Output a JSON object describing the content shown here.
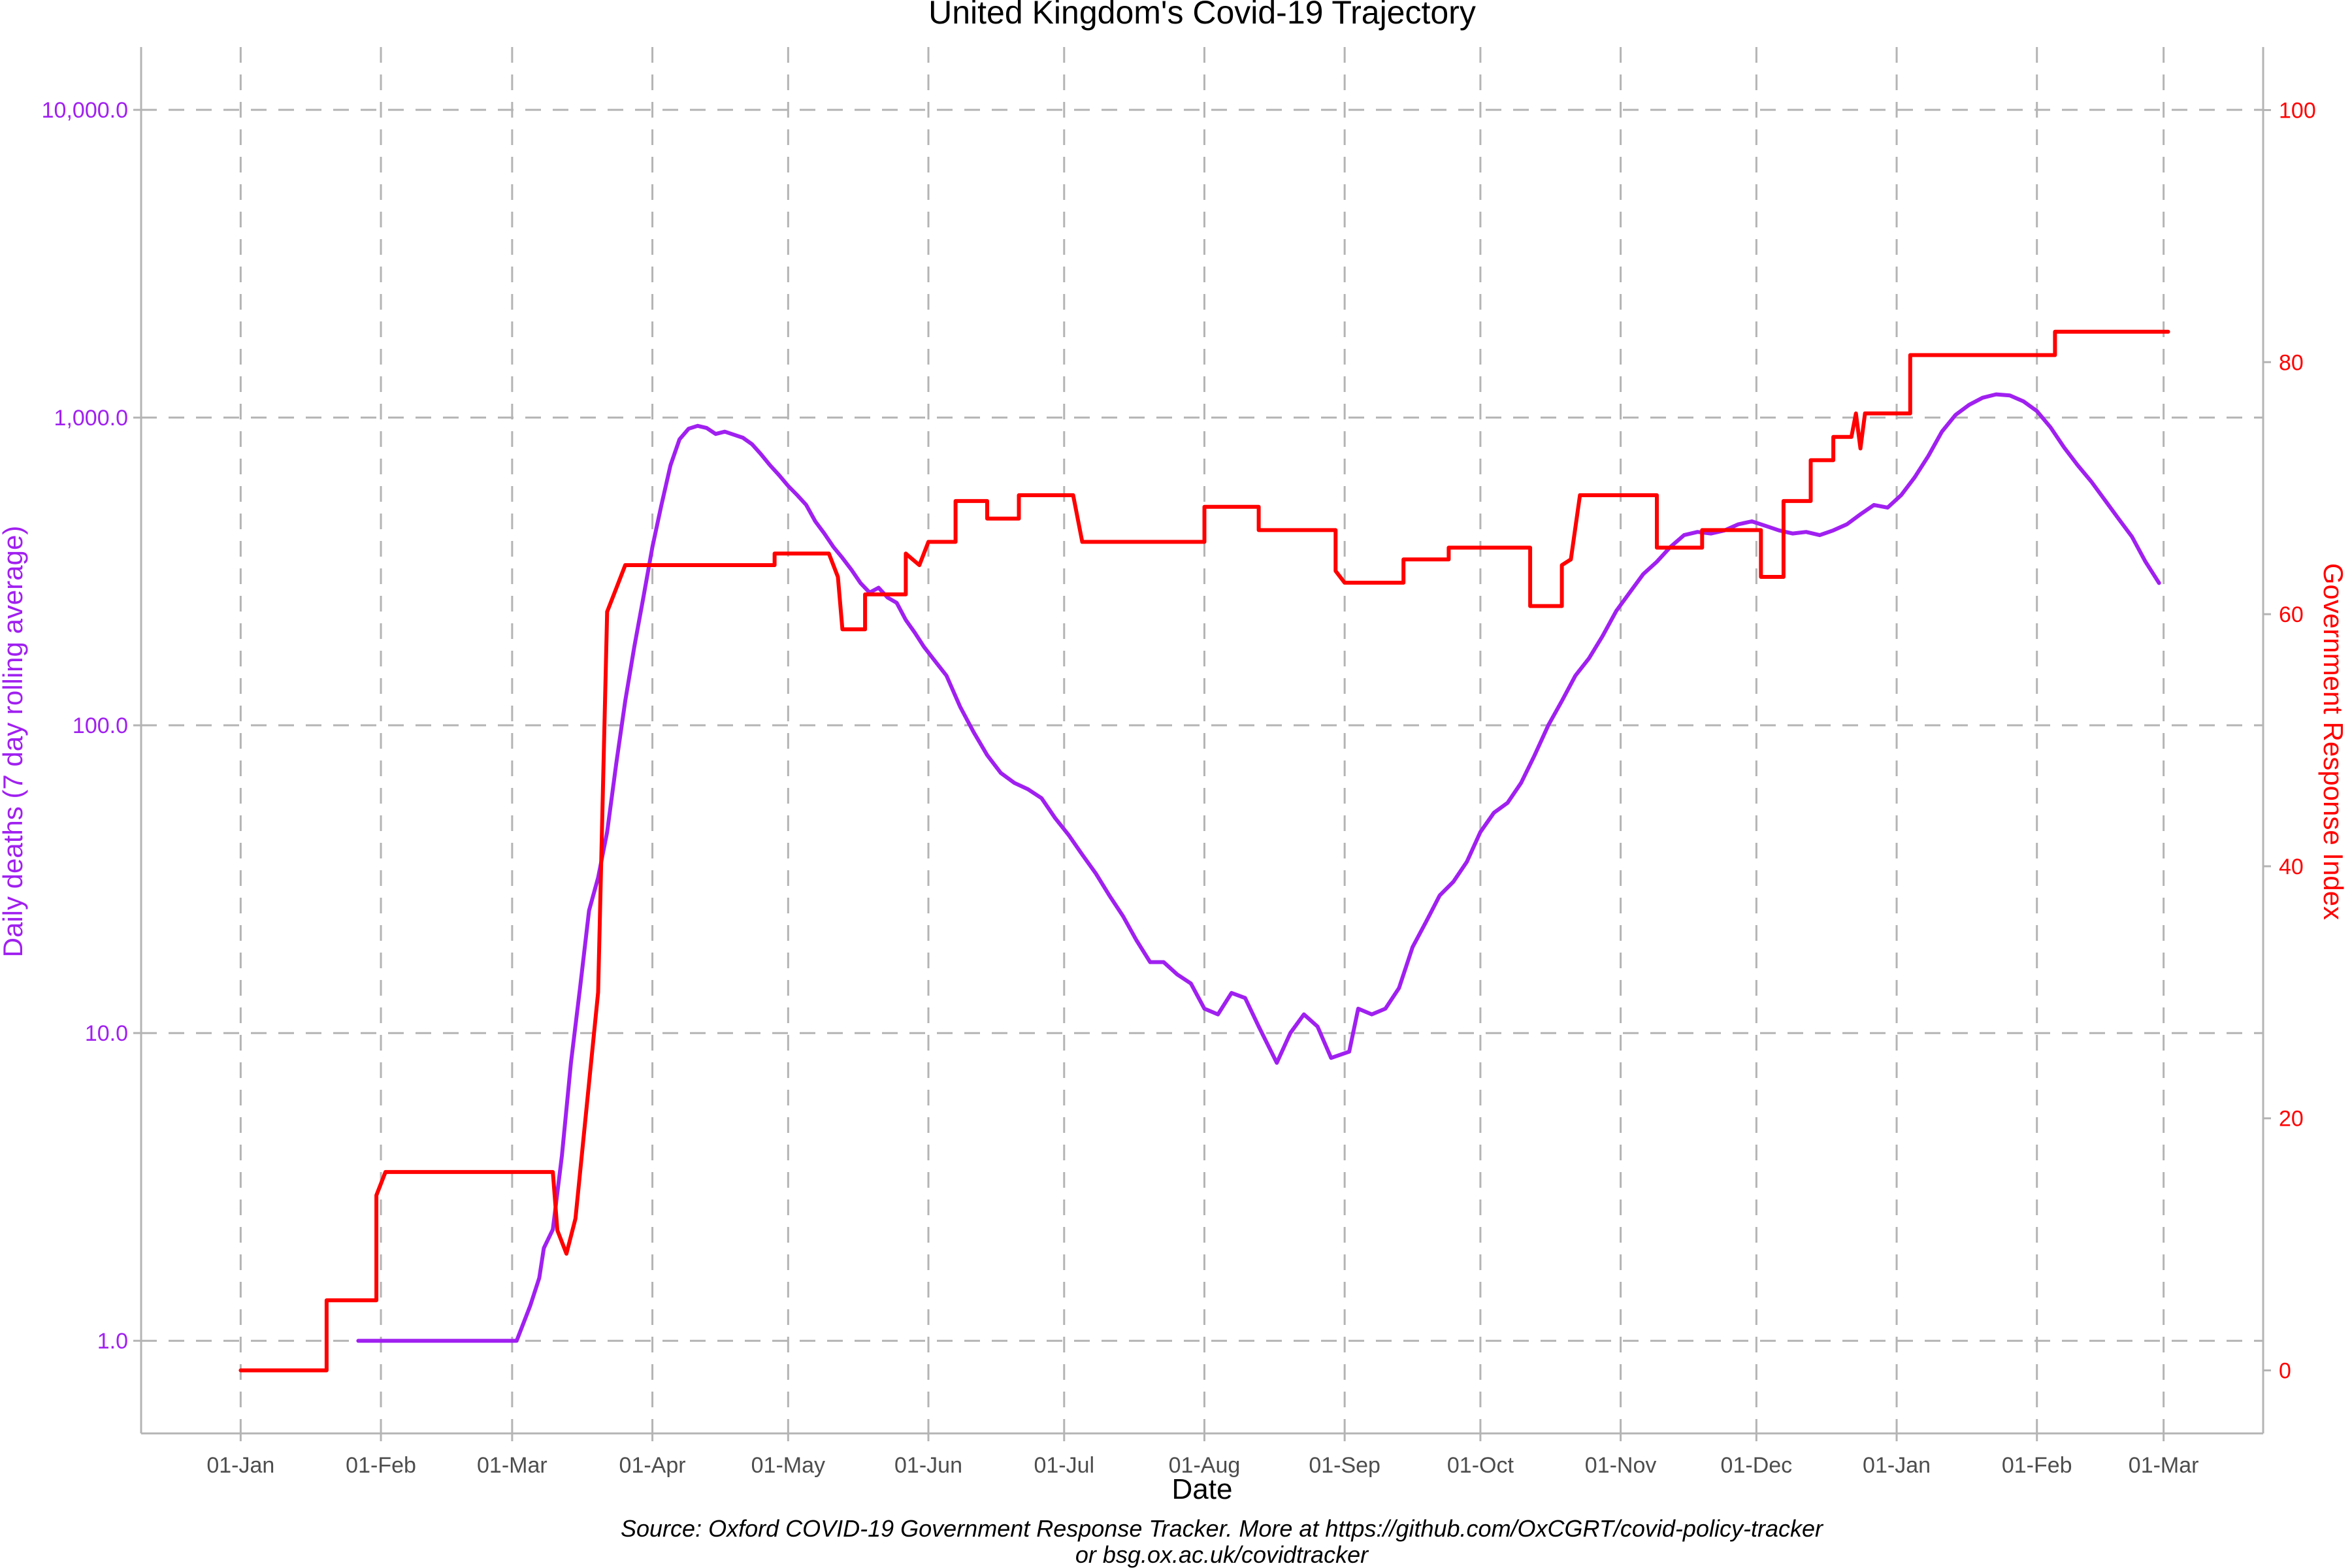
{
  "chart_data": {
    "type": "line",
    "title": "United Kingdom's Covid-19 Trajectory",
    "xlabel": "Date",
    "ylabel_left": "Daily deaths (7 day rolling average)",
    "ylabel_right": "Government Response Index",
    "caption_lines": [
      "Source: Oxford COVID-19 Government Response Tracker. More at https://github.com/OxCGRT/covid-policy-tracker",
      "or bsg.ox.ac.uk/covidtracker"
    ],
    "x_axis": {
      "ticks": [
        "2020-01-01",
        "2020-02-01",
        "2020-03-01",
        "2020-04-01",
        "2020-05-01",
        "2020-06-01",
        "2020-07-01",
        "2020-08-01",
        "2020-09-01",
        "2020-10-01",
        "2020-11-01",
        "2020-12-01",
        "2021-01-01",
        "2021-02-01",
        "2021-03-01"
      ],
      "tick_labels": [
        "01-Jan",
        "01-Feb",
        "01-Mar",
        "01-Apr",
        "01-May",
        "01-Jun",
        "01-Jul",
        "01-Aug",
        "01-Sep",
        "01-Oct",
        "01-Nov",
        "01-Dec",
        "01-Jan",
        "01-Feb",
        "01-Mar"
      ],
      "range": [
        "2019-12-10",
        "2021-03-23"
      ]
    },
    "y_left": {
      "scale": "log10",
      "ticks": [
        1,
        10,
        100,
        1000,
        10000
      ],
      "tick_labels": [
        "1.0",
        "10.0",
        "100.0",
        "1,000.0",
        "10,000.0"
      ],
      "range": [
        0.5,
        16000
      ],
      "color": "#a020f0"
    },
    "y_right": {
      "scale": "linear",
      "ticks": [
        0,
        20,
        40,
        60,
        80,
        100
      ],
      "tick_labels": [
        "0",
        "20",
        "40",
        "60",
        "80",
        "100"
      ],
      "range": [
        -5,
        105
      ],
      "color": "#ff0000"
    },
    "grid": true,
    "series": [
      {
        "axis": "left",
        "color": "#a020f0",
        "points": [
          [
            "2020-01-27",
            1
          ],
          [
            "2020-03-02",
            1
          ],
          [
            "2020-03-05",
            1.3
          ],
          [
            "2020-03-07",
            1.6
          ],
          [
            "2020-03-08",
            2
          ],
          [
            "2020-03-10",
            2.3
          ],
          [
            "2020-03-12",
            4
          ],
          [
            "2020-03-14",
            8
          ],
          [
            "2020-03-16",
            14
          ],
          [
            "2020-03-18",
            25
          ],
          [
            "2020-03-20",
            32
          ],
          [
            "2020-03-22",
            45
          ],
          [
            "2020-03-24",
            75
          ],
          [
            "2020-03-26",
            120
          ],
          [
            "2020-03-28",
            180
          ],
          [
            "2020-03-30",
            260
          ],
          [
            "2020-04-01",
            380
          ],
          [
            "2020-04-03",
            520
          ],
          [
            "2020-04-05",
            700
          ],
          [
            "2020-04-07",
            850
          ],
          [
            "2020-04-09",
            920
          ],
          [
            "2020-04-11",
            940
          ],
          [
            "2020-04-13",
            925
          ],
          [
            "2020-04-15",
            885
          ],
          [
            "2020-04-17",
            900
          ],
          [
            "2020-04-19",
            880
          ],
          [
            "2020-04-21",
            860
          ],
          [
            "2020-04-23",
            820
          ],
          [
            "2020-04-25",
            760
          ],
          [
            "2020-04-27",
            700
          ],
          [
            "2020-04-29",
            650
          ],
          [
            "2020-05-01",
            600
          ],
          [
            "2020-05-03",
            560
          ],
          [
            "2020-05-05",
            520
          ],
          [
            "2020-05-07",
            460
          ],
          [
            "2020-05-09",
            420
          ],
          [
            "2020-05-11",
            380
          ],
          [
            "2020-05-13",
            350
          ],
          [
            "2020-05-15",
            320
          ],
          [
            "2020-05-17",
            290
          ],
          [
            "2020-05-19",
            270
          ],
          [
            "2020-05-21",
            280
          ],
          [
            "2020-05-23",
            260
          ],
          [
            "2020-05-25",
            250
          ],
          [
            "2020-05-27",
            220
          ],
          [
            "2020-05-29",
            200
          ],
          [
            "2020-05-31",
            180
          ],
          [
            "2020-06-02",
            165
          ],
          [
            "2020-06-05",
            145
          ],
          [
            "2020-06-08",
            115
          ],
          [
            "2020-06-11",
            95
          ],
          [
            "2020-06-14",
            80
          ],
          [
            "2020-06-17",
            70
          ],
          [
            "2020-06-20",
            65
          ],
          [
            "2020-06-23",
            62
          ],
          [
            "2020-06-26",
            58
          ],
          [
            "2020-06-29",
            50
          ],
          [
            "2020-07-02",
            44
          ],
          [
            "2020-07-05",
            38
          ],
          [
            "2020-07-08",
            33
          ],
          [
            "2020-07-11",
            28
          ],
          [
            "2020-07-14",
            24
          ],
          [
            "2020-07-17",
            20
          ],
          [
            "2020-07-20",
            17
          ],
          [
            "2020-07-23",
            17
          ],
          [
            "2020-07-26",
            15.5
          ],
          [
            "2020-07-29",
            14.5
          ],
          [
            "2020-08-01",
            12
          ],
          [
            "2020-08-04",
            11.5
          ],
          [
            "2020-08-07",
            13.5
          ],
          [
            "2020-08-10",
            13
          ],
          [
            "2020-08-13",
            10.5
          ],
          [
            "2020-08-17",
            8
          ],
          [
            "2020-08-20",
            10
          ],
          [
            "2020-08-23",
            11.5
          ],
          [
            "2020-08-26",
            10.5
          ],
          [
            "2020-08-29",
            8.3
          ],
          [
            "2020-09-02",
            8.7
          ],
          [
            "2020-09-04",
            12
          ],
          [
            "2020-09-07",
            11.5
          ],
          [
            "2020-09-10",
            12
          ],
          [
            "2020-09-13",
            14
          ],
          [
            "2020-09-16",
            19
          ],
          [
            "2020-09-19",
            23
          ],
          [
            "2020-09-22",
            28
          ],
          [
            "2020-09-25",
            31
          ],
          [
            "2020-09-28",
            36
          ],
          [
            "2020-10-01",
            45
          ],
          [
            "2020-10-04",
            52
          ],
          [
            "2020-10-07",
            56
          ],
          [
            "2020-10-10",
            65
          ],
          [
            "2020-10-13",
            80
          ],
          [
            "2020-10-16",
            100
          ],
          [
            "2020-10-19",
            120
          ],
          [
            "2020-10-22",
            145
          ],
          [
            "2020-10-25",
            165
          ],
          [
            "2020-10-28",
            195
          ],
          [
            "2020-10-31",
            235
          ],
          [
            "2020-11-03",
            270
          ],
          [
            "2020-11-06",
            310
          ],
          [
            "2020-11-09",
            340
          ],
          [
            "2020-11-12",
            380
          ],
          [
            "2020-11-15",
            415
          ],
          [
            "2020-11-18",
            425
          ],
          [
            "2020-11-21",
            420
          ],
          [
            "2020-11-24",
            430
          ],
          [
            "2020-11-27",
            450
          ],
          [
            "2020-11-30",
            460
          ],
          [
            "2020-12-03",
            445
          ],
          [
            "2020-12-06",
            430
          ],
          [
            "2020-12-09",
            420
          ],
          [
            "2020-12-12",
            425
          ],
          [
            "2020-12-15",
            415
          ],
          [
            "2020-12-18",
            430
          ],
          [
            "2020-12-21",
            450
          ],
          [
            "2020-12-24",
            485
          ],
          [
            "2020-12-27",
            520
          ],
          [
            "2020-12-30",
            510
          ],
          [
            "2021-01-02",
            560
          ],
          [
            "2021-01-05",
            640
          ],
          [
            "2021-01-08",
            750
          ],
          [
            "2021-01-11",
            900
          ],
          [
            "2021-01-14",
            1020
          ],
          [
            "2021-01-17",
            1100
          ],
          [
            "2021-01-20",
            1160
          ],
          [
            "2021-01-23",
            1190
          ],
          [
            "2021-01-26",
            1180
          ],
          [
            "2021-01-29",
            1130
          ],
          [
            "2021-02-01",
            1050
          ],
          [
            "2021-02-04",
            930
          ],
          [
            "2021-02-07",
            800
          ],
          [
            "2021-02-10",
            700
          ],
          [
            "2021-02-13",
            620
          ],
          [
            "2021-02-16",
            540
          ],
          [
            "2021-02-19",
            470
          ],
          [
            "2021-02-22",
            410
          ],
          [
            "2021-02-25",
            340
          ],
          [
            "2021-02-28",
            290
          ]
        ]
      },
      {
        "axis": "right",
        "color": "#ff0000",
        "step": true,
        "points": [
          [
            "2020-01-01",
            0
          ],
          [
            "2020-01-20",
            0
          ],
          [
            "2020-01-20",
            5.56
          ],
          [
            "2020-01-31",
            5.56
          ],
          [
            "2020-01-31",
            13.89
          ],
          [
            "2020-02-02",
            15.74
          ],
          [
            "2020-03-10",
            15.74
          ],
          [
            "2020-03-11",
            11.11
          ],
          [
            "2020-03-13",
            9.26
          ],
          [
            "2020-03-15",
            12.04
          ],
          [
            "2020-03-20",
            30.0
          ],
          [
            "2020-03-22",
            60.19
          ],
          [
            "2020-03-24",
            62.04
          ],
          [
            "2020-03-26",
            63.89
          ],
          [
            "2020-04-28",
            63.89
          ],
          [
            "2020-04-28",
            64.81
          ],
          [
            "2020-05-10",
            64.81
          ],
          [
            "2020-05-12",
            62.96
          ],
          [
            "2020-05-13",
            58.8
          ],
          [
            "2020-05-18",
            58.8
          ],
          [
            "2020-05-18",
            61.57
          ],
          [
            "2020-05-27",
            61.57
          ],
          [
            "2020-05-27",
            64.81
          ],
          [
            "2020-05-30",
            63.89
          ],
          [
            "2020-06-01",
            65.74
          ],
          [
            "2020-06-07",
            65.74
          ],
          [
            "2020-06-07",
            68.98
          ],
          [
            "2020-06-14",
            68.98
          ],
          [
            "2020-06-14",
            67.59
          ],
          [
            "2020-06-21",
            67.59
          ],
          [
            "2020-06-21",
            69.44
          ],
          [
            "2020-07-03",
            69.44
          ],
          [
            "2020-07-05",
            65.74
          ],
          [
            "2020-08-01",
            65.74
          ],
          [
            "2020-08-01",
            68.52
          ],
          [
            "2020-08-13",
            68.52
          ],
          [
            "2020-08-13",
            66.67
          ],
          [
            "2020-08-30",
            66.67
          ],
          [
            "2020-08-30",
            63.43
          ],
          [
            "2020-09-01",
            62.5
          ],
          [
            "2020-09-14",
            62.5
          ],
          [
            "2020-09-14",
            64.35
          ],
          [
            "2020-09-24",
            64.35
          ],
          [
            "2020-09-24",
            65.28
          ],
          [
            "2020-10-12",
            65.28
          ],
          [
            "2020-10-12",
            60.65
          ],
          [
            "2020-10-19",
            60.65
          ],
          [
            "2020-10-19",
            63.89
          ],
          [
            "2020-10-21",
            64.35
          ],
          [
            "2020-10-23",
            69.44
          ],
          [
            "2020-11-09",
            69.44
          ],
          [
            "2020-11-09",
            65.28
          ],
          [
            "2020-11-19",
            65.28
          ],
          [
            "2020-11-19",
            66.67
          ],
          [
            "2020-12-02",
            66.67
          ],
          [
            "2020-12-02",
            62.96
          ],
          [
            "2020-12-07",
            62.96
          ],
          [
            "2020-12-07",
            68.98
          ],
          [
            "2020-12-13",
            68.98
          ],
          [
            "2020-12-13",
            72.22
          ],
          [
            "2020-12-18",
            72.22
          ],
          [
            "2020-12-18",
            74.07
          ],
          [
            "2020-12-22",
            74.07
          ],
          [
            "2020-12-23",
            75.93
          ],
          [
            "2020-12-24",
            73.15
          ],
          [
            "2020-12-25",
            75.93
          ],
          [
            "2021-01-04",
            75.93
          ],
          [
            "2021-01-04",
            80.56
          ],
          [
            "2021-02-05",
            80.56
          ],
          [
            "2021-02-05",
            82.41
          ],
          [
            "2021-03-02",
            82.41
          ]
        ]
      }
    ]
  }
}
